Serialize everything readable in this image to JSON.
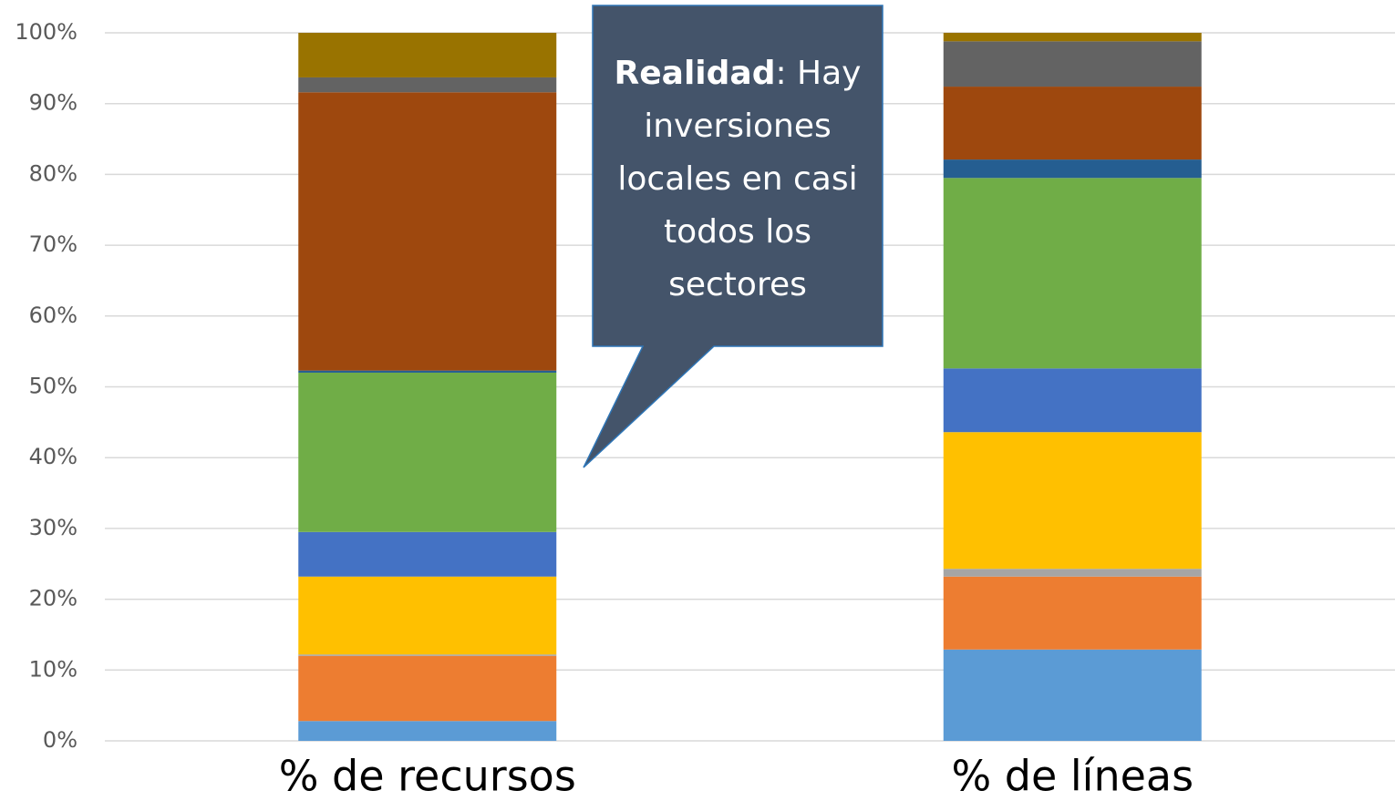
{
  "chart_data": {
    "type": "stacked_bar",
    "categories": [
      "% de recursos",
      "% de  líneas"
    ],
    "series": [
      {
        "color": "#5b9bd5",
        "values": [
          2.8,
          12.9
        ]
      },
      {
        "color": "#ed7d31",
        "values": [
          9.2,
          10.3
        ]
      },
      {
        "color": "#a5a5a5",
        "values": [
          0.2,
          1.1
        ]
      },
      {
        "color": "#ffc000",
        "values": [
          11.0,
          19.3
        ]
      },
      {
        "color": "#4472c4",
        "values": [
          6.3,
          9.0
        ]
      },
      {
        "color": "#70ad47",
        "values": [
          22.5,
          26.9
        ]
      },
      {
        "color": "#255e91",
        "values": [
          0.3,
          2.6
        ]
      },
      {
        "color": "#9e480e",
        "values": [
          39.3,
          10.3
        ]
      },
      {
        "color": "#636363",
        "values": [
          2.1,
          6.4
        ]
      },
      {
        "color": "#997300",
        "values": [
          6.3,
          1.2
        ]
      }
    ],
    "ylim": [
      0,
      100
    ],
    "yticks": [
      {
        "value": 0,
        "label": "0%"
      },
      {
        "value": 10,
        "label": "10%"
      },
      {
        "value": 20,
        "label": "20%"
      },
      {
        "value": 30,
        "label": "30%"
      },
      {
        "value": 40,
        "label": "40%"
      },
      {
        "value": 50,
        "label": "50%"
      },
      {
        "value": 60,
        "label": "60%"
      },
      {
        "value": 70,
        "label": "70%"
      },
      {
        "value": 80,
        "label": "80%"
      },
      {
        "value": 90,
        "label": "90%"
      },
      {
        "value": 100,
        "label": "100%"
      }
    ],
    "grid": true,
    "annotation": {
      "emphasis": "Realidad",
      "text": ": Hay inversiones locales en casi todos los sectores"
    }
  }
}
